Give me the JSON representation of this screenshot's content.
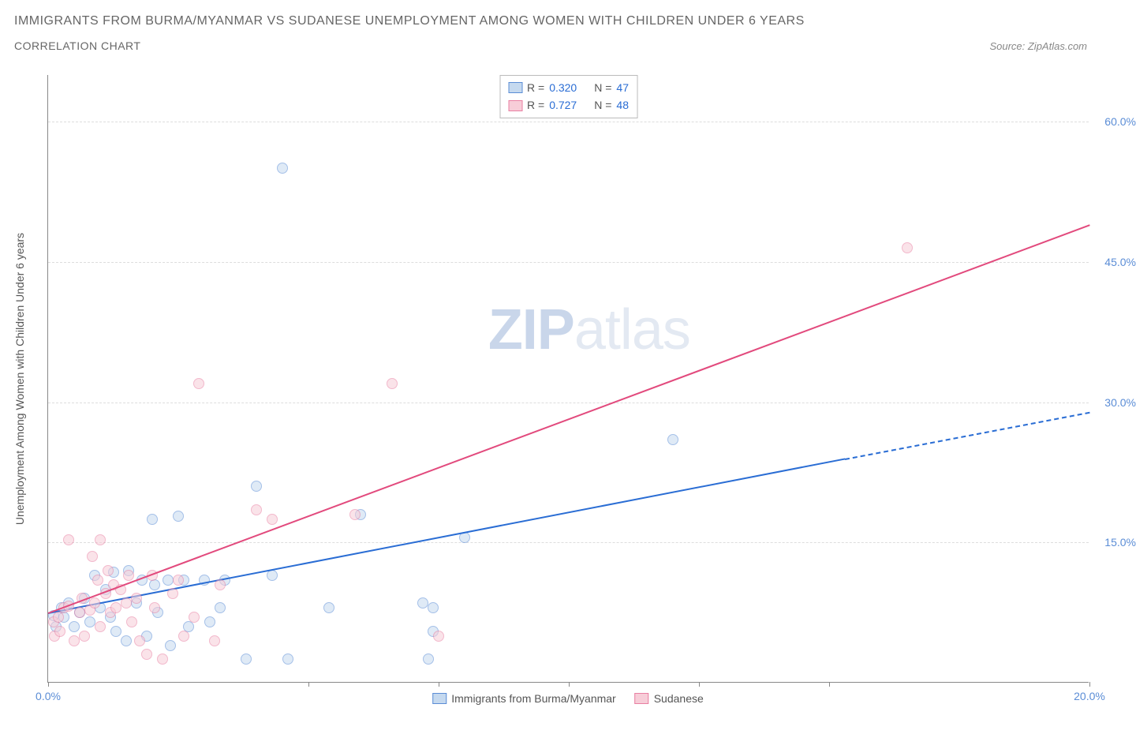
{
  "title": "IMMIGRANTS FROM BURMA/MYANMAR VS SUDANESE UNEMPLOYMENT AMONG WOMEN WITH CHILDREN UNDER 6 YEARS",
  "subtitle": "CORRELATION CHART",
  "source": "Source: ZipAtlas.com",
  "watermark": {
    "bold": "ZIP",
    "rest": "atlas"
  },
  "y_axis_title": "Unemployment Among Women with Children Under 6 years",
  "chart": {
    "type": "scatter",
    "background_color": "#ffffff",
    "grid_color": "#dddddd",
    "axis_color": "#888888",
    "xlim": [
      0,
      20
    ],
    "ylim": [
      0,
      65
    ],
    "x_ticks": [
      0,
      5,
      7.5,
      10,
      12.5,
      15,
      20
    ],
    "x_tick_labels": {
      "0": "0.0%",
      "20": "20.0%"
    },
    "y_ticks": [
      15,
      30,
      45,
      60
    ],
    "y_tick_labels": {
      "15": "15.0%",
      "30": "30.0%",
      "45": "45.0%",
      "60": "60.0%"
    },
    "series": [
      {
        "name": "Immigrants from Burma/Myanmar",
        "marker_fill": "#c5d9ef",
        "marker_stroke": "#5b8dd6",
        "marker_opacity": 0.55,
        "marker_size": 14,
        "R": "0.320",
        "N": "47",
        "points": [
          [
            0.1,
            7.2
          ],
          [
            0.15,
            6.0
          ],
          [
            0.25,
            8.0
          ],
          [
            0.3,
            7.0
          ],
          [
            0.4,
            8.5
          ],
          [
            0.5,
            6.0
          ],
          [
            0.6,
            7.5
          ],
          [
            0.7,
            9.0
          ],
          [
            0.8,
            6.5
          ],
          [
            0.9,
            11.5
          ],
          [
            1.0,
            8.0
          ],
          [
            1.1,
            10.0
          ],
          [
            1.2,
            7.0
          ],
          [
            1.25,
            11.8
          ],
          [
            1.3,
            5.5
          ],
          [
            1.5,
            4.5
          ],
          [
            1.55,
            12.0
          ],
          [
            1.7,
            8.5
          ],
          [
            1.8,
            11.0
          ],
          [
            1.9,
            5.0
          ],
          [
            2.0,
            17.5
          ],
          [
            2.05,
            10.5
          ],
          [
            2.1,
            7.5
          ],
          [
            2.3,
            11.0
          ],
          [
            2.35,
            4.0
          ],
          [
            2.5,
            17.8
          ],
          [
            2.6,
            11.0
          ],
          [
            2.7,
            6.0
          ],
          [
            3.0,
            11.0
          ],
          [
            3.1,
            6.5
          ],
          [
            3.3,
            8.0
          ],
          [
            3.4,
            11.0
          ],
          [
            3.8,
            2.5
          ],
          [
            4.0,
            21.0
          ],
          [
            4.3,
            11.5
          ],
          [
            4.5,
            55.0
          ],
          [
            4.6,
            2.5
          ],
          [
            5.4,
            8.0
          ],
          [
            6.0,
            18.0
          ],
          [
            7.2,
            8.5
          ],
          [
            7.3,
            2.5
          ],
          [
            7.4,
            5.5
          ],
          [
            7.4,
            8.0
          ],
          [
            8.0,
            15.5
          ],
          [
            12.0,
            26.0
          ]
        ],
        "trend": {
          "color": "#2a6dd4",
          "width": 2,
          "solid": {
            "x1": 0,
            "y1": 7.5,
            "x2": 15.3,
            "y2": 24.0
          },
          "dash": {
            "x1": 15.3,
            "y1": 24.0,
            "x2": 20,
            "y2": 29.0
          }
        }
      },
      {
        "name": "Sudanese",
        "marker_fill": "#f7cdd8",
        "marker_stroke": "#e97fa2",
        "marker_opacity": 0.55,
        "marker_size": 14,
        "R": "0.727",
        "N": "48",
        "points": [
          [
            0.1,
            6.5
          ],
          [
            0.12,
            5.0
          ],
          [
            0.2,
            7.0
          ],
          [
            0.22,
            5.5
          ],
          [
            0.3,
            8.0
          ],
          [
            0.4,
            8.2
          ],
          [
            0.4,
            15.3
          ],
          [
            0.5,
            4.5
          ],
          [
            0.6,
            7.5
          ],
          [
            0.65,
            9.0
          ],
          [
            0.7,
            5.0
          ],
          [
            0.8,
            7.8
          ],
          [
            0.85,
            13.5
          ],
          [
            0.9,
            8.5
          ],
          [
            0.95,
            11.0
          ],
          [
            1.0,
            6.0
          ],
          [
            1.0,
            15.3
          ],
          [
            1.1,
            9.5
          ],
          [
            1.15,
            12.0
          ],
          [
            1.2,
            7.5
          ],
          [
            1.25,
            10.5
          ],
          [
            1.3,
            8.0
          ],
          [
            1.4,
            10.0
          ],
          [
            1.5,
            8.5
          ],
          [
            1.55,
            11.5
          ],
          [
            1.6,
            6.5
          ],
          [
            1.7,
            9.0
          ],
          [
            1.75,
            4.5
          ],
          [
            1.9,
            3.0
          ],
          [
            2.0,
            11.5
          ],
          [
            2.05,
            8.0
          ],
          [
            2.2,
            2.5
          ],
          [
            2.4,
            9.5
          ],
          [
            2.5,
            11.0
          ],
          [
            2.6,
            5.0
          ],
          [
            2.8,
            7.0
          ],
          [
            2.9,
            32.0
          ],
          [
            3.2,
            4.5
          ],
          [
            3.3,
            10.5
          ],
          [
            4.0,
            18.5
          ],
          [
            4.3,
            17.5
          ],
          [
            5.9,
            18.0
          ],
          [
            6.6,
            32.0
          ],
          [
            7.5,
            5.0
          ],
          [
            16.5,
            46.5
          ]
        ],
        "trend": {
          "color": "#e24a7d",
          "width": 2,
          "solid": {
            "x1": 0,
            "y1": 7.5,
            "x2": 20,
            "y2": 49.0
          }
        }
      }
    ]
  },
  "legend_bottom": [
    {
      "label": "Immigrants from Burma/Myanmar",
      "fill": "#c5d9ef",
      "stroke": "#5b8dd6"
    },
    {
      "label": "Sudanese",
      "fill": "#f7cdd8",
      "stroke": "#e97fa2"
    }
  ]
}
